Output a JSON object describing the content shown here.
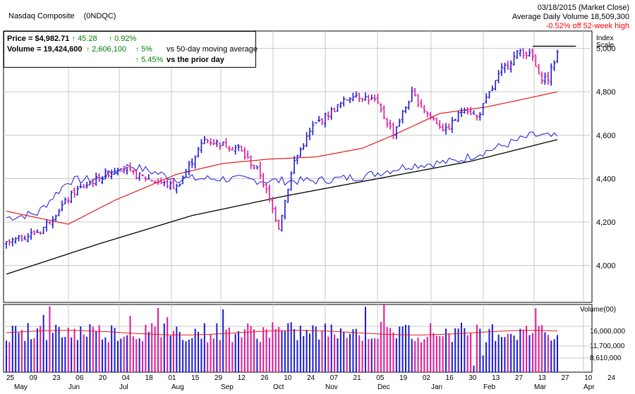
{
  "header": {
    "title": "Nasdaq Composite",
    "symbol": "(0NDQC)",
    "date_line": "03/18/2015 (Market Close)",
    "avg_volume_line": "Average Daily Volume 18,509,300",
    "high_line": "-0.52% off 52-week high"
  },
  "stats": {
    "price_label": "Price = $4,982.71",
    "price_change": "45.28",
    "price_pct": "0.92%",
    "volume_label": "Volume = 19,424,600",
    "volume_change": "2,606,100",
    "volume_pct_50": "5%",
    "volume_50_text": "vs 50-day moving average",
    "volume_pct_prior": "5.45%",
    "volume_prior_text": "vs the prior day"
  },
  "colors": {
    "up_bar": "#1a1ad6",
    "down_bar": "#e0179a",
    "sma50": "#e31a1a",
    "sma200": "#000000",
    "relative_strength": "#1a1ad6",
    "grid": "#c8c8c8",
    "arrow_up": "#008000",
    "negative_text": "#ff0000"
  },
  "chart_data": [
    {
      "type": "candlestick",
      "name": "price",
      "yaxis_title": "Index\nScale",
      "y_ticks": [
        "5,000",
        "4,800",
        "4,600",
        "4,400",
        "4,200",
        "4,000"
      ],
      "y_tick_values": [
        5000,
        4800,
        4600,
        4400,
        4200,
        4000
      ],
      "ylim": [
        3830,
        5080
      ],
      "key_points": [
        {
          "t": 0,
          "close": 4100
        },
        {
          "t": 11,
          "close": 4160
        },
        {
          "t": 22,
          "close": 4340
        },
        {
          "t": 37,
          "close": 4460
        },
        {
          "t": 41,
          "close": 4420
        },
        {
          "t": 55,
          "close": 4360
        },
        {
          "t": 64,
          "close": 4580
        },
        {
          "t": 75,
          "close": 4540
        },
        {
          "t": 82,
          "close": 4420
        },
        {
          "t": 88,
          "close": 4180
        },
        {
          "t": 93,
          "close": 4480
        },
        {
          "t": 99,
          "close": 4640
        },
        {
          "t": 112,
          "close": 4790
        },
        {
          "t": 119,
          "close": 4760
        },
        {
          "t": 125,
          "close": 4610
        },
        {
          "t": 131,
          "close": 4790
        },
        {
          "t": 136,
          "close": 4700
        },
        {
          "t": 142,
          "close": 4620
        },
        {
          "t": 148,
          "close": 4730
        },
        {
          "t": 152,
          "close": 4680
        },
        {
          "t": 160,
          "close": 4900
        },
        {
          "t": 166,
          "close": 4990
        },
        {
          "t": 170,
          "close": 4960
        },
        {
          "t": 172,
          "close": 4870
        },
        {
          "t": 175,
          "close": 4860
        },
        {
          "t": 178,
          "close": 4982
        }
      ],
      "sma50_points": [
        {
          "t": 0,
          "v": 4250
        },
        {
          "t": 20,
          "v": 4190
        },
        {
          "t": 35,
          "v": 4300
        },
        {
          "t": 55,
          "v": 4420
        },
        {
          "t": 70,
          "v": 4470
        },
        {
          "t": 85,
          "v": 4490
        },
        {
          "t": 100,
          "v": 4500
        },
        {
          "t": 115,
          "v": 4540
        },
        {
          "t": 125,
          "v": 4600
        },
        {
          "t": 140,
          "v": 4700
        },
        {
          "t": 155,
          "v": 4730
        },
        {
          "t": 165,
          "v": 4760
        },
        {
          "t": 178,
          "v": 4800
        }
      ],
      "sma200_points": [
        {
          "t": 0,
          "v": 3960
        },
        {
          "t": 30,
          "v": 4100
        },
        {
          "t": 60,
          "v": 4230
        },
        {
          "t": 90,
          "v": 4320
        },
        {
          "t": 120,
          "v": 4400
        },
        {
          "t": 150,
          "v": 4480
        },
        {
          "t": 178,
          "v": 4580
        }
      ],
      "rs_points": [
        {
          "t": 0,
          "v": 4220
        },
        {
          "t": 10,
          "v": 4240
        },
        {
          "t": 20,
          "v": 4390
        },
        {
          "t": 30,
          "v": 4400
        },
        {
          "t": 40,
          "v": 4460
        },
        {
          "t": 55,
          "v": 4400
        },
        {
          "t": 70,
          "v": 4400
        },
        {
          "t": 85,
          "v": 4390
        },
        {
          "t": 100,
          "v": 4390
        },
        {
          "t": 115,
          "v": 4410
        },
        {
          "t": 130,
          "v": 4460
        },
        {
          "t": 145,
          "v": 4480
        },
        {
          "t": 160,
          "v": 4550
        },
        {
          "t": 170,
          "v": 4600
        },
        {
          "t": 178,
          "v": 4590
        }
      ],
      "high_line": {
        "t_start": 170,
        "t_end": 184,
        "v": 5010
      }
    },
    {
      "type": "bar",
      "name": "volume",
      "yaxis_title": "Volume(00)",
      "y_ticks": [
        "16,000,000",
        "11,700,000",
        "8,610,000"
      ],
      "ma_level": 16500000,
      "typical_volume": 17000000
    }
  ],
  "x_axis": {
    "day_labels": [
      "25",
      "09",
      "23",
      "06",
      "20",
      "04",
      "18",
      "01",
      "15",
      "29",
      "12",
      "26",
      "10",
      "24",
      "07",
      "21",
      "05",
      "19",
      "02",
      "16",
      "30",
      "13",
      "27",
      "13",
      "27",
      "10",
      "24"
    ],
    "month_labels": [
      "May",
      "Jun",
      "Jul",
      "Aug",
      "Sep",
      "Oct",
      "Nov",
      "Dec",
      "Jan",
      "Feb",
      "Mar",
      "Apr"
    ]
  }
}
